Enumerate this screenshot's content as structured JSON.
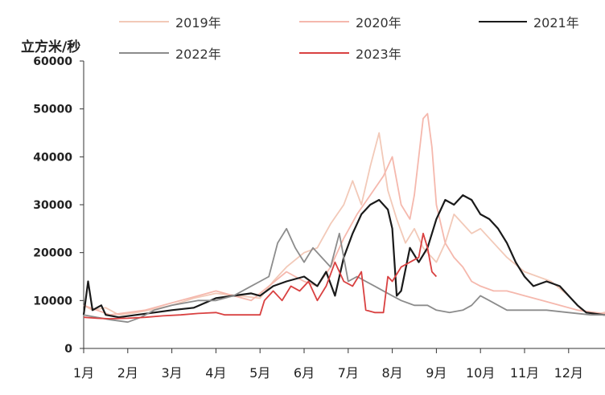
{
  "chart_data": {
    "type": "line",
    "title": "",
    "ylabel": "立方米/秒",
    "xlabel": "",
    "ylim": [
      0,
      60000
    ],
    "yticks": [
      "0",
      "10000",
      "20000",
      "30000",
      "40000",
      "50000",
      "60000"
    ],
    "xticks": [
      "1月",
      "2月",
      "3月",
      "4月",
      "5月",
      "6月",
      "7月",
      "8月",
      "9月",
      "10月",
      "11月",
      "12月"
    ],
    "x_unit": "month",
    "xlim": [
      1,
      13
    ],
    "grid": false,
    "legend_position": "top",
    "series": [
      {
        "name": "2019年",
        "color": "#f2c9b8",
        "points": [
          [
            1.0,
            9000
          ],
          [
            1.2,
            8000
          ],
          [
            1.5,
            8500
          ],
          [
            1.8,
            7000
          ],
          [
            2.2,
            7500
          ],
          [
            2.5,
            8000
          ],
          [
            3.0,
            9000
          ],
          [
            3.5,
            10500
          ],
          [
            4.0,
            11500
          ],
          [
            4.5,
            11000
          ],
          [
            5.0,
            10500
          ],
          [
            5.3,
            14000
          ],
          [
            5.6,
            17000
          ],
          [
            6.0,
            20000
          ],
          [
            6.3,
            21000
          ],
          [
            6.6,
            26000
          ],
          [
            6.9,
            30000
          ],
          [
            7.1,
            35000
          ],
          [
            7.3,
            30000
          ],
          [
            7.5,
            38000
          ],
          [
            7.7,
            45000
          ],
          [
            7.9,
            33000
          ],
          [
            8.1,
            27000
          ],
          [
            8.3,
            22000
          ],
          [
            8.5,
            25000
          ],
          [
            8.7,
            21000
          ],
          [
            9.0,
            18000
          ],
          [
            9.2,
            22000
          ],
          [
            9.4,
            28000
          ],
          [
            9.6,
            26000
          ],
          [
            9.8,
            24000
          ],
          [
            10.0,
            25000
          ],
          [
            10.3,
            22000
          ],
          [
            10.6,
            19000
          ],
          [
            11.0,
            16000
          ],
          [
            11.3,
            15000
          ],
          [
            11.6,
            14000
          ],
          [
            12.0,
            11000
          ],
          [
            12.3,
            8000
          ],
          [
            12.6,
            7000
          ],
          [
            13.0,
            8000
          ]
        ]
      },
      {
        "name": "2020年",
        "color": "#f5b8ad",
        "points": [
          [
            1.0,
            9000
          ],
          [
            1.3,
            8000
          ],
          [
            1.6,
            7000
          ],
          [
            2.0,
            7500
          ],
          [
            2.4,
            8000
          ],
          [
            2.8,
            9000
          ],
          [
            3.2,
            10000
          ],
          [
            3.6,
            11000
          ],
          [
            4.0,
            12000
          ],
          [
            4.4,
            11000
          ],
          [
            4.8,
            10000
          ],
          [
            5.2,
            13000
          ],
          [
            5.6,
            16000
          ],
          [
            6.0,
            14000
          ],
          [
            6.3,
            13000
          ],
          [
            6.6,
            17000
          ],
          [
            6.9,
            23000
          ],
          [
            7.2,
            28000
          ],
          [
            7.5,
            32000
          ],
          [
            7.8,
            36000
          ],
          [
            8.0,
            40000
          ],
          [
            8.2,
            30000
          ],
          [
            8.4,
            27000
          ],
          [
            8.5,
            32000
          ],
          [
            8.6,
            40000
          ],
          [
            8.7,
            48000
          ],
          [
            8.8,
            49000
          ],
          [
            8.9,
            42000
          ],
          [
            9.0,
            30000
          ],
          [
            9.2,
            22000
          ],
          [
            9.4,
            19000
          ],
          [
            9.6,
            17000
          ],
          [
            9.8,
            14000
          ],
          [
            10.0,
            13000
          ],
          [
            10.3,
            12000
          ],
          [
            10.6,
            12000
          ],
          [
            11.0,
            11000
          ],
          [
            11.4,
            10000
          ],
          [
            11.8,
            9000
          ],
          [
            12.2,
            8000
          ],
          [
            12.6,
            7500
          ],
          [
            13.0,
            7000
          ]
        ]
      },
      {
        "name": "2021年",
        "color": "#1a1a1a",
        "points": [
          [
            1.0,
            7000
          ],
          [
            1.1,
            14000
          ],
          [
            1.2,
            8000
          ],
          [
            1.4,
            9000
          ],
          [
            1.5,
            7000
          ],
          [
            1.8,
            6500
          ],
          [
            2.2,
            7000
          ],
          [
            2.6,
            7500
          ],
          [
            3.0,
            8000
          ],
          [
            3.5,
            8500
          ],
          [
            4.0,
            10500
          ],
          [
            4.4,
            11000
          ],
          [
            4.8,
            11500
          ],
          [
            5.0,
            11000
          ],
          [
            5.3,
            13000
          ],
          [
            5.6,
            14000
          ],
          [
            6.0,
            15000
          ],
          [
            6.3,
            13000
          ],
          [
            6.5,
            16000
          ],
          [
            6.7,
            11000
          ],
          [
            6.9,
            19000
          ],
          [
            7.1,
            24000
          ],
          [
            7.3,
            28000
          ],
          [
            7.5,
            30000
          ],
          [
            7.7,
            31000
          ],
          [
            7.9,
            29000
          ],
          [
            8.0,
            25000
          ],
          [
            8.1,
            11000
          ],
          [
            8.2,
            12000
          ],
          [
            8.4,
            21000
          ],
          [
            8.6,
            18000
          ],
          [
            8.8,
            21000
          ],
          [
            9.0,
            27000
          ],
          [
            9.2,
            31000
          ],
          [
            9.4,
            30000
          ],
          [
            9.6,
            32000
          ],
          [
            9.8,
            31000
          ],
          [
            10.0,
            28000
          ],
          [
            10.2,
            27000
          ],
          [
            10.4,
            25000
          ],
          [
            10.6,
            22000
          ],
          [
            10.8,
            18000
          ],
          [
            11.0,
            15000
          ],
          [
            11.2,
            13000
          ],
          [
            11.5,
            14000
          ],
          [
            11.8,
            13000
          ],
          [
            12.0,
            11000
          ],
          [
            12.2,
            9000
          ],
          [
            12.4,
            7500
          ],
          [
            12.8,
            7000
          ],
          [
            13.0,
            7000
          ]
        ]
      },
      {
        "name": "2022年",
        "color": "#8c8c8c",
        "points": [
          [
            1.0,
            7000
          ],
          [
            1.3,
            6500
          ],
          [
            1.6,
            6000
          ],
          [
            2.0,
            5500
          ],
          [
            2.3,
            6500
          ],
          [
            2.6,
            8000
          ],
          [
            3.0,
            9000
          ],
          [
            3.3,
            9500
          ],
          [
            3.6,
            10000
          ],
          [
            4.0,
            10000
          ],
          [
            4.4,
            11000
          ],
          [
            4.8,
            13000
          ],
          [
            5.0,
            14000
          ],
          [
            5.2,
            15000
          ],
          [
            5.4,
            22000
          ],
          [
            5.6,
            25000
          ],
          [
            5.8,
            21000
          ],
          [
            6.0,
            18000
          ],
          [
            6.2,
            21000
          ],
          [
            6.4,
            19000
          ],
          [
            6.6,
            17000
          ],
          [
            6.8,
            24000
          ],
          [
            7.0,
            14000
          ],
          [
            7.2,
            15000
          ],
          [
            7.4,
            14000
          ],
          [
            7.6,
            13000
          ],
          [
            7.8,
            12000
          ],
          [
            8.0,
            11000
          ],
          [
            8.2,
            10000
          ],
          [
            8.5,
            9000
          ],
          [
            8.8,
            9000
          ],
          [
            9.0,
            8000
          ],
          [
            9.3,
            7500
          ],
          [
            9.6,
            8000
          ],
          [
            9.8,
            9000
          ],
          [
            10.0,
            11000
          ],
          [
            10.2,
            10000
          ],
          [
            10.4,
            9000
          ],
          [
            10.6,
            8000
          ],
          [
            11.0,
            8000
          ],
          [
            11.5,
            8000
          ],
          [
            12.0,
            7500
          ],
          [
            12.5,
            7000
          ],
          [
            13.0,
            7000
          ]
        ]
      },
      {
        "name": "2023年",
        "color": "#d94141",
        "points": [
          [
            1.0,
            6500
          ],
          [
            1.3,
            6300
          ],
          [
            1.6,
            6200
          ],
          [
            2.0,
            6300
          ],
          [
            2.4,
            6500
          ],
          [
            2.8,
            6800
          ],
          [
            3.2,
            7000
          ],
          [
            3.6,
            7300
          ],
          [
            4.0,
            7500
          ],
          [
            4.2,
            7000
          ],
          [
            4.4,
            7000
          ],
          [
            4.8,
            7000
          ],
          [
            5.0,
            7000
          ],
          [
            5.1,
            10000
          ],
          [
            5.3,
            12000
          ],
          [
            5.5,
            10000
          ],
          [
            5.7,
            13000
          ],
          [
            5.9,
            12000
          ],
          [
            6.1,
            14000
          ],
          [
            6.3,
            10000
          ],
          [
            6.5,
            13000
          ],
          [
            6.7,
            18000
          ],
          [
            6.9,
            14000
          ],
          [
            7.1,
            13000
          ],
          [
            7.3,
            16000
          ],
          [
            7.4,
            8000
          ],
          [
            7.6,
            7500
          ],
          [
            7.8,
            7500
          ],
          [
            7.9,
            15000
          ],
          [
            8.0,
            14000
          ],
          [
            8.2,
            17000
          ],
          [
            8.4,
            18000
          ],
          [
            8.6,
            19000
          ],
          [
            8.7,
            24000
          ],
          [
            8.8,
            21000
          ],
          [
            8.9,
            16000
          ],
          [
            9.0,
            15000
          ]
        ]
      }
    ]
  }
}
